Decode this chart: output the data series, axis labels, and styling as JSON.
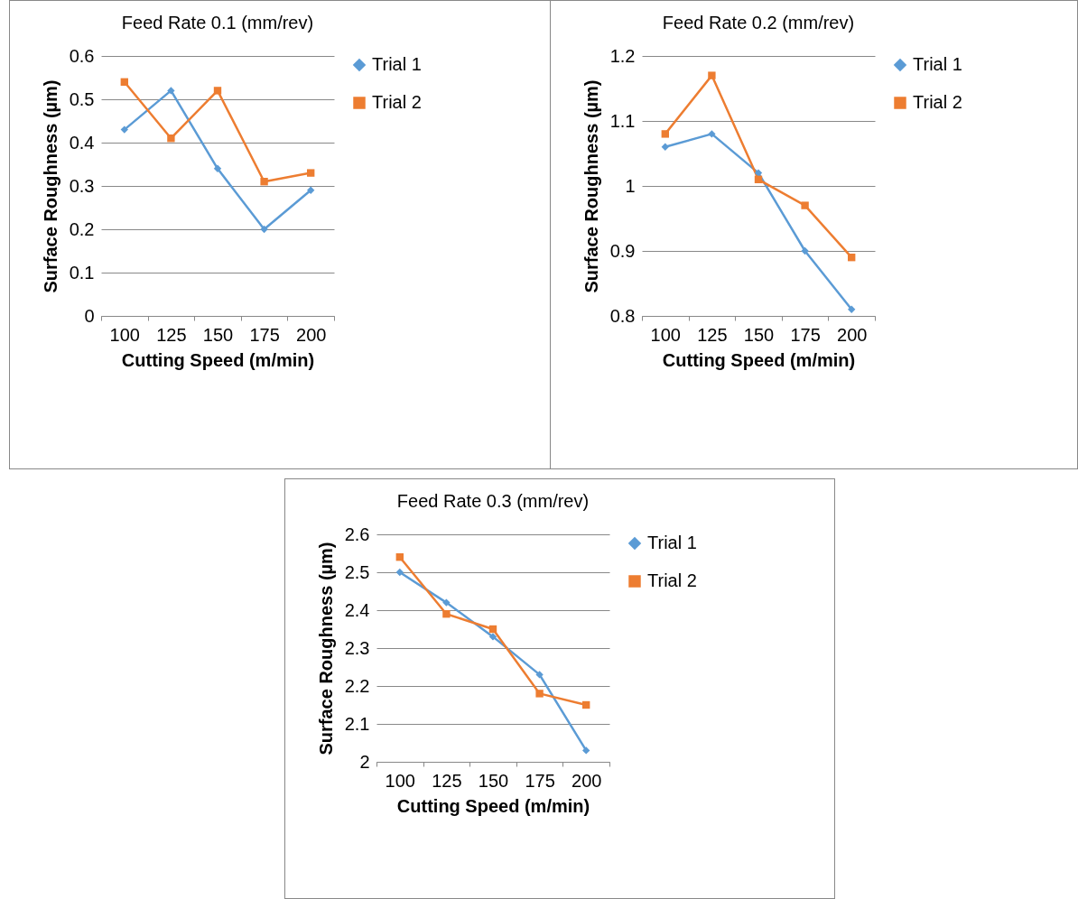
{
  "chart_data": [
    {
      "type": "line",
      "title": "Feed Rate 0.1 (mm/rev)",
      "xlabel": "Cutting Speed (m/min)",
      "ylabel": "Surface Roughness (µm)",
      "categories": [
        "100",
        "125",
        "150",
        "175",
        "200"
      ],
      "ylim": [
        0,
        0.6
      ],
      "yticks": [
        0,
        0.1,
        0.2,
        0.3,
        0.4,
        0.5,
        0.6
      ],
      "grid": "y",
      "legend": "right",
      "series": [
        {
          "name": "Trial 1",
          "color": "#5b9bd5",
          "marker": "diamond",
          "values": [
            0.43,
            0.52,
            0.34,
            0.2,
            0.29
          ]
        },
        {
          "name": "Trial 2",
          "color": "#ed7d31",
          "marker": "square",
          "values": [
            0.54,
            0.41,
            0.52,
            0.31,
            0.33
          ]
        }
      ]
    },
    {
      "type": "line",
      "title": "Feed Rate 0.2 (mm/rev)",
      "xlabel": "Cutting Speed (m/min)",
      "ylabel": "Surface Roughness (µm)",
      "categories": [
        "100",
        "125",
        "150",
        "175",
        "200"
      ],
      "ylim": [
        0.8,
        1.2
      ],
      "yticks": [
        0.8,
        0.9,
        1,
        1.1,
        1.2
      ],
      "grid": "y",
      "legend": "right",
      "series": [
        {
          "name": "Trial 1",
          "color": "#5b9bd5",
          "marker": "diamond",
          "values": [
            1.06,
            1.08,
            1.02,
            0.9,
            0.81
          ]
        },
        {
          "name": "Trial 2",
          "color": "#ed7d31",
          "marker": "square",
          "values": [
            1.08,
            1.17,
            1.01,
            0.97,
            0.89
          ]
        }
      ]
    },
    {
      "type": "line",
      "title": "Feed Rate 0.3 (mm/rev)",
      "xlabel": "Cutting Speed (m/min)",
      "ylabel": "Surface Roughness (µm)",
      "categories": [
        "100",
        "125",
        "150",
        "175",
        "200"
      ],
      "ylim": [
        2,
        2.6
      ],
      "yticks": [
        2,
        2.1,
        2.2,
        2.3,
        2.4,
        2.5,
        2.6
      ],
      "grid": "y",
      "legend": "right",
      "series": [
        {
          "name": "Trial 1",
          "color": "#5b9bd5",
          "marker": "diamond",
          "values": [
            2.5,
            2.42,
            2.33,
            2.23,
            2.03
          ]
        },
        {
          "name": "Trial 2",
          "color": "#ed7d31",
          "marker": "square",
          "values": [
            2.54,
            2.39,
            2.35,
            2.18,
            2.15
          ]
        }
      ]
    }
  ]
}
